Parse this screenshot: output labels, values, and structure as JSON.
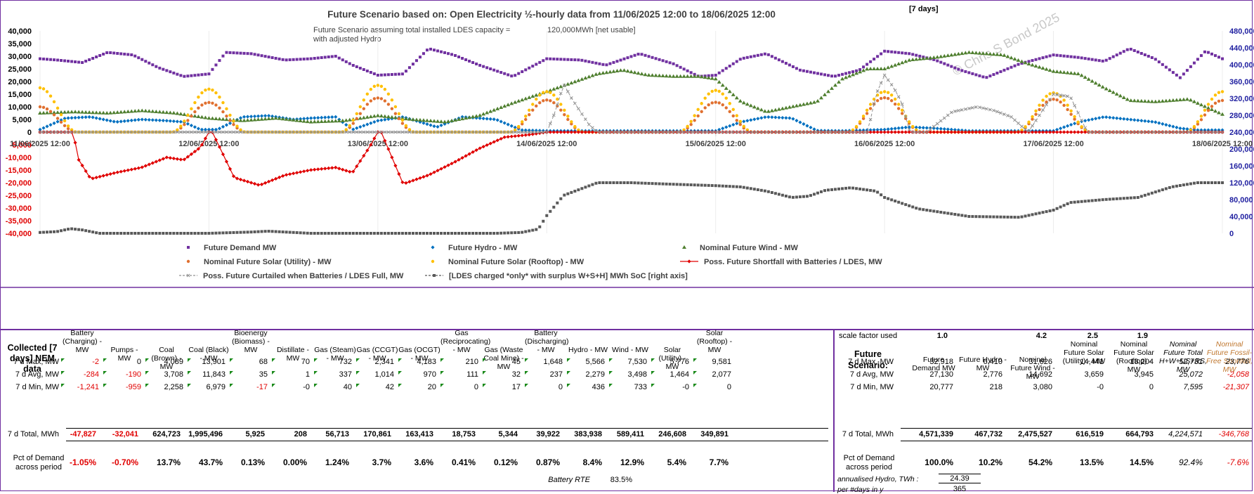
{
  "chart_data": {
    "type": "line",
    "title": "Future Scenario based on:  Open Electricity ½-hourly data from 11/06/2025 12:00  to 18/06/2025 12:00",
    "period_label": "[7 days]",
    "subtitle_line1": "Future Scenario assuming total installed LDES capacity =",
    "subtitle_value": "120,000",
    "subtitle_unit": "MWh [net usable]",
    "subtitle_line2": "with adjusted Hydro",
    "watermark": "© Chris S Bond  2025",
    "x_ticks": [
      "11/06/2025 12:00",
      "12/06/2025 12:00",
      "13/06/2025 12:00",
      "14/06/2025 12:00",
      "15/06/2025 12:00",
      "16/06/2025 12:00",
      "17/06/2025 12:00",
      "18/06/2025 12:00"
    ],
    "y_left_ticks": [
      "40,000",
      "35,000",
      "30,000",
      "25,000",
      "20,000",
      "15,000",
      "10,000",
      "5,000",
      "0",
      "-5,000",
      "-10,000",
      "-15,000",
      "-20,000",
      "-25,000",
      "-30,000",
      "-35,000",
      "-40,000"
    ],
    "ylim_left": [
      -40000,
      40000
    ],
    "y_right_ticks": [
      "480,000",
      "440,000",
      "400,000",
      "360,000",
      "320,000",
      "280,000",
      "240,000",
      "200,000",
      "160,000",
      "120,000",
      "80,000",
      "40,000",
      "0"
    ],
    "ylim_right": [
      0,
      480000
    ],
    "xlim_days": [
      0,
      7
    ],
    "series": [
      {
        "name": "Future Demand MW",
        "color": "#7030a0",
        "marker": "square",
        "axis": "left",
        "x": [
          0,
          0.1,
          0.25,
          0.4,
          0.55,
          0.7,
          0.85,
          1,
          1.1,
          1.25,
          1.45,
          1.6,
          1.75,
          1.85,
          2,
          2.15,
          2.3,
          2.45,
          2.6,
          2.8,
          3,
          3.2,
          3.35,
          3.55,
          3.75,
          3.9,
          4,
          4.15,
          4.3,
          4.5,
          4.7,
          4.85,
          5,
          5.15,
          5.3,
          5.45,
          5.6,
          5.8,
          6,
          6.15,
          6.3,
          6.45,
          6.6,
          6.75,
          6.9,
          7
        ],
        "values": [
          29000,
          28500,
          27500,
          31500,
          30500,
          25500,
          22000,
          23000,
          31500,
          31000,
          28500,
          29000,
          30000,
          26500,
          22500,
          23000,
          33000,
          30500,
          26500,
          22000,
          29000,
          28500,
          26500,
          31000,
          27000,
          22000,
          22500,
          29000,
          31000,
          24500,
          22000,
          24500,
          32000,
          31000,
          28500,
          24500,
          21500,
          27000,
          30500,
          29500,
          28000,
          33000,
          29000,
          21500,
          32000,
          29000
        ]
      },
      {
        "name": "Future Hydro -  MW",
        "color": "#0070c0",
        "marker": "diamond",
        "axis": "left",
        "x": [
          0,
          0.15,
          0.3,
          0.45,
          0.6,
          0.75,
          0.85,
          0.95,
          1.05,
          1.2,
          1.35,
          1.5,
          1.6,
          1.75,
          1.85,
          2,
          2.15,
          2.35,
          2.5,
          2.7,
          2.85,
          3,
          3.15,
          3.3,
          3.5,
          3.7,
          3.85,
          4,
          4.15,
          4.3,
          4.45,
          4.6,
          4.75,
          5,
          5.15,
          5.3,
          5.5,
          5.7,
          5.85,
          6,
          6.15,
          6.3,
          6.45,
          6.6,
          6.75,
          6.85,
          6.95,
          7
        ],
        "values": [
          1000,
          5500,
          6000,
          4000,
          5000,
          4500,
          4000,
          1000,
          1000,
          6000,
          6500,
          5000,
          5500,
          6000,
          1000,
          4500,
          6000,
          2000,
          6000,
          5000,
          800,
          500,
          500,
          500,
          500,
          500,
          500,
          500,
          4000,
          6000,
          5500,
          600,
          500,
          1000,
          2000,
          1500,
          500,
          500,
          500,
          500,
          4000,
          6000,
          5000,
          4000,
          1500,
          800,
          800,
          800
        ]
      },
      {
        "name": "Nominal Future Wind -  MW",
        "color": "#4f7f2f",
        "marker": "triangle",
        "axis": "left",
        "x": [
          0,
          0.2,
          0.4,
          0.6,
          0.8,
          1,
          1.2,
          1.4,
          1.6,
          1.8,
          2,
          2.2,
          2.4,
          2.6,
          2.8,
          3,
          3.15,
          3.3,
          3.45,
          3.6,
          3.75,
          3.9,
          4,
          4.15,
          4.3,
          4.45,
          4.6,
          4.75,
          4.9,
          5,
          5.15,
          5.3,
          5.5,
          5.7,
          5.85,
          6,
          6.15,
          6.3,
          6.45,
          6.6,
          6.8,
          7
        ],
        "values": [
          7500,
          8000,
          7500,
          8500,
          7500,
          5500,
          4500,
          5500,
          4000,
          4500,
          6500,
          5000,
          4000,
          6500,
          11500,
          16000,
          19500,
          23000,
          24500,
          22500,
          22000,
          22000,
          21000,
          12000,
          8000,
          10000,
          12000,
          21000,
          25000,
          25000,
          28500,
          29500,
          31500,
          30500,
          27000,
          24000,
          23000,
          17500,
          12500,
          12000,
          13000,
          7000
        ]
      },
      {
        "name": "Nominal Future Solar (Utility) -  MW",
        "color": "#e07030",
        "marker": "circle",
        "axis": "left",
        "peaks": [
          {
            "center": 0.0,
            "value": 10000
          },
          {
            "center": 1.0,
            "value": 11700
          },
          {
            "center": 2.0,
            "value": 13500
          },
          {
            "center": 3.0,
            "value": 12700
          },
          {
            "center": 4.0,
            "value": 11800
          },
          {
            "center": 5.0,
            "value": 13600
          },
          {
            "center": 6.0,
            "value": 13000
          },
          {
            "center": 7.0,
            "value": 12500
          }
        ],
        "half_width_days": 0.22
      },
      {
        "name": "Nominal Future Solar (Rooftop) -  MW",
        "color": "#ffc000",
        "marker": "circle",
        "axis": "left",
        "peaks": [
          {
            "center": 0.0,
            "value": 17500
          },
          {
            "center": 1.0,
            "value": 17000
          },
          {
            "center": 2.0,
            "value": 18500
          },
          {
            "center": 3.0,
            "value": 16000
          },
          {
            "center": 4.0,
            "value": 16500
          },
          {
            "center": 5.0,
            "value": 16000
          },
          {
            "center": 6.0,
            "value": 15500
          },
          {
            "center": 7.0,
            "value": 16000
          }
        ],
        "half_width_days": 0.22
      },
      {
        "name": "Poss. Future Shortfall with Batteries / LDES, MW",
        "color": "#e00000",
        "marker": "diamond",
        "axis": "left",
        "x": [
          0,
          0.2,
          0.22,
          0.3,
          0.45,
          0.6,
          0.75,
          0.85,
          0.95,
          1.0,
          1.02,
          1.15,
          1.3,
          1.45,
          1.6,
          1.75,
          1.85,
          1.95,
          2.0,
          2.02,
          2.15,
          2.3,
          2.45,
          2.6,
          2.75,
          2.9,
          3.0,
          3.02,
          6.9,
          6.92,
          7.0,
          7.1,
          7.2,
          7.3,
          7.45,
          7.55,
          7.65,
          7.75
        ],
        "values": [
          0,
          0,
          -10000,
          -18500,
          -16000,
          -14000,
          -10000,
          -11000,
          -6000,
          0,
          0,
          -18000,
          -21000,
          -17000,
          -15000,
          -14000,
          -16000,
          -6000,
          0,
          0,
          -20500,
          -17000,
          -12000,
          -6500,
          -2000,
          -1000,
          0,
          0,
          0,
          0,
          0,
          0,
          0,
          0,
          0,
          0,
          0,
          0
        ]
      },
      {
        "name": "Poss. Future Curtailed when Batteries / LDES Full, MW",
        "color": "#909090",
        "marker": "x",
        "axis": "left",
        "x": [
          3.0,
          3.05,
          3.1,
          3.15,
          3.2,
          3.25,
          3.3,
          4.9,
          4.95,
          5.0,
          5.05,
          5.1,
          5.15,
          5.25,
          5.4,
          5.55,
          5.65,
          5.75,
          5.85,
          5.95,
          6.0,
          6.1,
          6.15,
          6.2
        ],
        "values": [
          0,
          8000,
          19000,
          13000,
          8000,
          3000,
          0,
          0,
          15000,
          22500,
          18000,
          12000,
          0,
          0,
          8000,
          10000,
          8500,
          6000,
          0,
          10000,
          15000,
          14000,
          7000,
          0
        ]
      },
      {
        "name": "[LDES charged *only* with surplus W+S+H]  MWh SoC [right axis]",
        "color": "#595959",
        "marker": "square",
        "axis": "right",
        "x": [
          0,
          0.1,
          0.18,
          0.25,
          0.35,
          0.5,
          1.0,
          1.25,
          1.35,
          1.45,
          1.6,
          1.8,
          2.0,
          2.2,
          2.5,
          2.7,
          2.85,
          2.95,
          3.0,
          3.1,
          3.3,
          3.5,
          3.7,
          3.85,
          4.0,
          4.15,
          4.3,
          4.45,
          4.55,
          4.65,
          4.8,
          4.95,
          5.0,
          5.2,
          5.5,
          5.8,
          6.0,
          6.1,
          6.3,
          6.5,
          6.7,
          6.85,
          7.0,
          7.1,
          7.3,
          7.5,
          7.65,
          7.75
        ],
        "values": [
          2000,
          4000,
          11000,
          8000,
          0,
          0,
          0,
          3000,
          5000,
          3000,
          0,
          0,
          0,
          0,
          0,
          0,
          2000,
          10000,
          42000,
          90000,
          120000,
          120000,
          117000,
          115000,
          113000,
          110000,
          100000,
          85000,
          88000,
          102000,
          108000,
          100000,
          85000,
          58000,
          40000,
          38000,
          55000,
          73000,
          80000,
          85000,
          110000,
          120000,
          120000,
          120000,
          120000,
          120000,
          120000,
          120000
        ]
      }
    ],
    "legend": [
      "Future Demand MW",
      "Future Hydro -  MW",
      "Nominal Future Wind -  MW",
      "Nominal Future Solar (Utility) -  MW",
      "Nominal Future Solar (Rooftop) -  MW",
      "Poss. Future Shortfall with Batteries / LDES, MW",
      "Poss. Future Curtailed when Batteries / LDES Full, MW",
      "[LDES charged *only* with surplus W+S+H]  MWh SoC [right axis]"
    ]
  },
  "left_table": {
    "title": "Collected [7 days] NEM data",
    "columns": [
      "Battery (Charging) - MW",
      "Pumps - MW",
      "Coal (Brown) - MW",
      "Coal (Black) - MW",
      "Bioenergy (Biomass) - MW",
      "Distillate - MW",
      "Gas (Steam) - MW",
      "Gas (CCGT) - MW",
      "Gas (OCGT) - MW",
      "Gas (Reciprocating) - MW",
      "Gas (Waste Coal Mine) - MW",
      "Battery (Discharging) - MW",
      "Hydro - MW",
      "Wind - MW",
      "Solar (Utility) - MW",
      "Solar (Rooftop) - MW"
    ],
    "rows": [
      {
        "label": "7 d Max, MW",
        "values": [
          "-2",
          "0",
          "4,089",
          "13,901",
          "68",
          "70",
          "732",
          "2,341",
          "4,183",
          "210",
          "45",
          "1,648",
          "5,566",
          "7,530",
          "5,776",
          "9,581"
        ]
      },
      {
        "label": "7 d Avg, MW",
        "values": [
          "-284",
          "-190",
          "3,708",
          "11,843",
          "35",
          "1",
          "337",
          "1,014",
          "970",
          "111",
          "32",
          "237",
          "2,279",
          "3,498",
          "1,464",
          "2,077"
        ]
      },
      {
        "label": "7 d Min, MW",
        "values": [
          "-1,241",
          "-959",
          "2,258",
          "6,979",
          "-17",
          "-0",
          "40",
          "42",
          "20",
          "0",
          "17",
          "0",
          "436",
          "733",
          "-0",
          "0"
        ]
      }
    ],
    "total_label": "7 d Total, MWh",
    "totals": [
      "-47,827",
      "-32,041",
      "624,723",
      "1,995,496",
      "5,925",
      "208",
      "56,713",
      "170,861",
      "163,413",
      "18,753",
      "5,344",
      "39,922",
      "383,938",
      "589,411",
      "246,608",
      "349,891"
    ],
    "pct_label": "Pct of Demand across period",
    "pcts": [
      "-1.05%",
      "-0.70%",
      "13.7%",
      "43.7%",
      "0.13%",
      "0.00%",
      "1.24%",
      "3.7%",
      "3.6%",
      "0.41%",
      "0.12%",
      "0.87%",
      "8.4%",
      "12.9%",
      "5.4%",
      "7.7%"
    ],
    "rte_label": "Battery RTE",
    "rte_value": "83.5%"
  },
  "right_table": {
    "scale_label": "scale factor used",
    "scale_values": [
      "1.0",
      "",
      "4.2",
      "2.5",
      "1.9"
    ],
    "title": "Future Scenario:",
    "columns": [
      "Future Demand MW",
      "Future Hydro - MW",
      "Nominal Future Wind - MW",
      "Nominal Future Solar (Utility) - MW",
      "Nominal Future Solar (Rooftop) - MW",
      "Nominal Future Total H+W+US+RS, MW",
      "Nominal Future Fossil-Free Shortfall, MW"
    ],
    "rows": [
      {
        "label": "7 d Max, MW",
        "values": [
          "32,918",
          "6,410",
          "31,626",
          "14,441",
          "18,204",
          "52,731",
          "23,776"
        ]
      },
      {
        "label": "7 d Avg, MW",
        "values": [
          "27,130",
          "2,776",
          "14,692",
          "3,659",
          "3,945",
          "25,072",
          "-2,058"
        ]
      },
      {
        "label": "7 d Min, MW",
        "values": [
          "20,777",
          "218",
          "3,080",
          "-0",
          "0",
          "7,595",
          "-21,307"
        ]
      }
    ],
    "total_label": "7 d Total, MWh",
    "totals": [
      "4,571,339",
      "467,732",
      "2,475,527",
      "616,519",
      "664,793",
      "4,224,571",
      "-346,768"
    ],
    "pct_label": "Pct of Demand across period",
    "pcts": [
      "100.0%",
      "10.2%",
      "54.2%",
      "13.5%",
      "14.5%",
      "92.4%",
      "-7.6%"
    ],
    "annual_label": "annualised Hydro, TWh :",
    "annual_value": "24.39",
    "days_label": "per #days in y",
    "days_value": "365"
  }
}
